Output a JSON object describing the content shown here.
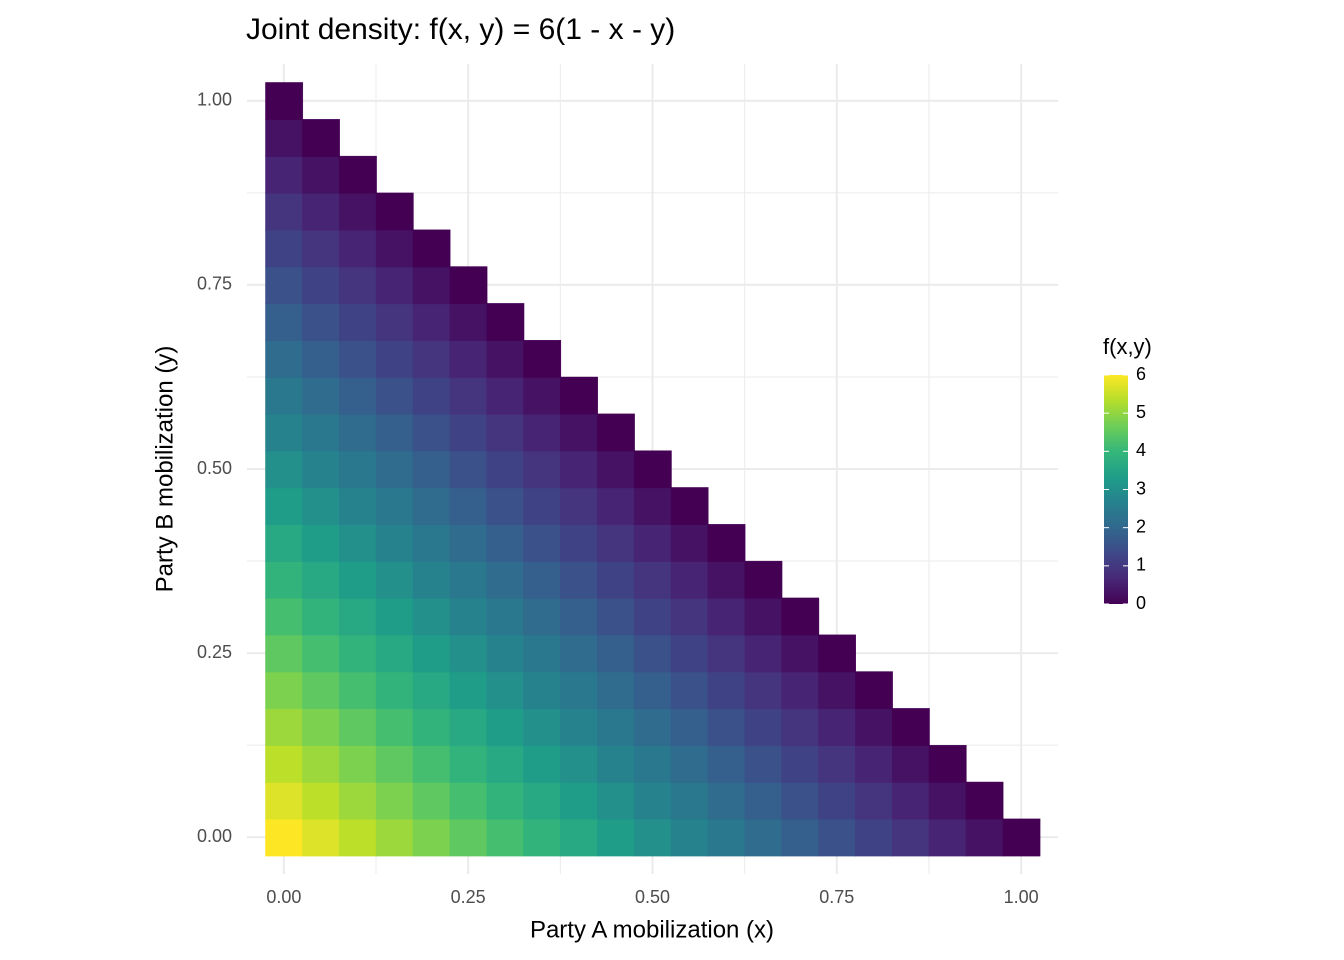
{
  "chart_data": {
    "type": "heatmap",
    "title": "Joint density: f(x, y) = 6(1 - x - y)",
    "xlabel": "Party A mobilization (x)",
    "ylabel": "Party B mobilization (y)",
    "legend_title": "f(x,y)",
    "x": [
      0,
      0.05,
      0.1,
      0.15,
      0.2,
      0.25,
      0.3,
      0.35,
      0.4,
      0.45,
      0.5,
      0.55,
      0.6,
      0.65,
      0.7,
      0.75,
      0.8,
      0.85,
      0.9,
      0.95,
      1
    ],
    "y": [
      0,
      0.05,
      0.1,
      0.15,
      0.2,
      0.25,
      0.3,
      0.35,
      0.4,
      0.45,
      0.5,
      0.55,
      0.6,
      0.65,
      0.7,
      0.75,
      0.8,
      0.85,
      0.9,
      0.95,
      1
    ],
    "z": [
      [
        6,
        5.7,
        5.4,
        5.1,
        4.8,
        4.5,
        4.2,
        3.9,
        3.6,
        3.3,
        3,
        2.7,
        2.4,
        2.1,
        1.8,
        1.5,
        1.2,
        0.9,
        0.6,
        0.3,
        0
      ],
      [
        5.7,
        5.4,
        5.1,
        4.8,
        4.5,
        4.2,
        3.9,
        3.6,
        3.3,
        3,
        2.7,
        2.4,
        2.1,
        1.8,
        1.5,
        1.2,
        0.9,
        0.6,
        0.3,
        0,
        null
      ],
      [
        5.4,
        5.1,
        4.8,
        4.5,
        4.2,
        3.9,
        3.6,
        3.3,
        3,
        2.7,
        2.4,
        2.1,
        1.8,
        1.5,
        1.2,
        0.9,
        0.6,
        0.3,
        0,
        null,
        null
      ],
      [
        5.1,
        4.8,
        4.5,
        4.2,
        3.9,
        3.6,
        3.3,
        3,
        2.7,
        2.4,
        2.1,
        1.8,
        1.5,
        1.2,
        0.9,
        0.6,
        0.3,
        0,
        null,
        null,
        null
      ],
      [
        4.8,
        4.5,
        4.2,
        3.9,
        3.6,
        3.3,
        3,
        2.7,
        2.4,
        2.1,
        1.8,
        1.5,
        1.2,
        0.9,
        0.6,
        0.3,
        0,
        null,
        null,
        null,
        null
      ],
      [
        4.5,
        4.2,
        3.9,
        3.6,
        3.3,
        3,
        2.7,
        2.4,
        2.1,
        1.8,
        1.5,
        1.2,
        0.9,
        0.6,
        0.3,
        0,
        null,
        null,
        null,
        null,
        null
      ],
      [
        4.2,
        3.9,
        3.6,
        3.3,
        3,
        2.7,
        2.4,
        2.1,
        1.8,
        1.5,
        1.2,
        0.9,
        0.6,
        0.3,
        0,
        null,
        null,
        null,
        null,
        null,
        null
      ],
      [
        3.9,
        3.6,
        3.3,
        3,
        2.7,
        2.4,
        2.1,
        1.8,
        1.5,
        1.2,
        0.9,
        0.6,
        0.3,
        0,
        null,
        null,
        null,
        null,
        null,
        null,
        null
      ],
      [
        3.6,
        3.3,
        3,
        2.7,
        2.4,
        2.1,
        1.8,
        1.5,
        1.2,
        0.9,
        0.6,
        0.3,
        0,
        null,
        null,
        null,
        null,
        null,
        null,
        null,
        null
      ],
      [
        3.3,
        3,
        2.7,
        2.4,
        2.1,
        1.8,
        1.5,
        1.2,
        0.9,
        0.6,
        0.3,
        0,
        null,
        null,
        null,
        null,
        null,
        null,
        null,
        null,
        null
      ],
      [
        3,
        2.7,
        2.4,
        2.1,
        1.8,
        1.5,
        1.2,
        0.9,
        0.6,
        0.3,
        0,
        null,
        null,
        null,
        null,
        null,
        null,
        null,
        null,
        null,
        null
      ],
      [
        2.7,
        2.4,
        2.1,
        1.8,
        1.5,
        1.2,
        0.9,
        0.6,
        0.3,
        0,
        null,
        null,
        null,
        null,
        null,
        null,
        null,
        null,
        null,
        null,
        null
      ],
      [
        2.4,
        2.1,
        1.8,
        1.5,
        1.2,
        0.9,
        0.6,
        0.3,
        0,
        null,
        null,
        null,
        null,
        null,
        null,
        null,
        null,
        null,
        null,
        null,
        null
      ],
      [
        2.1,
        1.8,
        1.5,
        1.2,
        0.9,
        0.6,
        0.3,
        0,
        null,
        null,
        null,
        null,
        null,
        null,
        null,
        null,
        null,
        null,
        null,
        null,
        null
      ],
      [
        1.8,
        1.5,
        1.2,
        0.9,
        0.6,
        0.3,
        0,
        null,
        null,
        null,
        null,
        null,
        null,
        null,
        null,
        null,
        null,
        null,
        null,
        null,
        null
      ],
      [
        1.5,
        1.2,
        0.9,
        0.6,
        0.3,
        0,
        null,
        null,
        null,
        null,
        null,
        null,
        null,
        null,
        null,
        null,
        null,
        null,
        null,
        null,
        null
      ],
      [
        1.2,
        0.9,
        0.6,
        0.3,
        0,
        null,
        null,
        null,
        null,
        null,
        null,
        null,
        null,
        null,
        null,
        null,
        null,
        null,
        null,
        null,
        null
      ],
      [
        0.9,
        0.6,
        0.3,
        0,
        null,
        null,
        null,
        null,
        null,
        null,
        null,
        null,
        null,
        null,
        null,
        null,
        null,
        null,
        null,
        null,
        null
      ],
      [
        0.6,
        0.3,
        0,
        null,
        null,
        null,
        null,
        null,
        null,
        null,
        null,
        null,
        null,
        null,
        null,
        null,
        null,
        null,
        null,
        null,
        null
      ],
      [
        0.3,
        0,
        null,
        null,
        null,
        null,
        null,
        null,
        null,
        null,
        null,
        null,
        null,
        null,
        null,
        null,
        null,
        null,
        null,
        null,
        null
      ],
      [
        0,
        null,
        null,
        null,
        null,
        null,
        null,
        null,
        null,
        null,
        null,
        null,
        null,
        null,
        null,
        null,
        null,
        null,
        null,
        null,
        null
      ]
    ],
    "xlim": [
      -0.05,
      1.05
    ],
    "ylim": [
      -0.05,
      1.05
    ],
    "xticks": [
      {
        "value": 0,
        "label": "0.00"
      },
      {
        "value": 0.25,
        "label": "0.25"
      },
      {
        "value": 0.5,
        "label": "0.50"
      },
      {
        "value": 0.75,
        "label": "0.75"
      },
      {
        "value": 1,
        "label": "1.00"
      }
    ],
    "yticks": [
      {
        "value": 0,
        "label": "0.00"
      },
      {
        "value": 0.25,
        "label": "0.25"
      },
      {
        "value": 0.5,
        "label": "0.50"
      },
      {
        "value": 0.75,
        "label": "0.75"
      },
      {
        "value": 1,
        "label": "1.00"
      }
    ],
    "minor_ticks": [
      0.125,
      0.375,
      0.625,
      0.875
    ],
    "grid": true,
    "clim": [
      0,
      6
    ],
    "cticks": [
      0,
      1,
      2,
      3,
      4,
      5,
      6
    ],
    "colormap": [
      "#440154",
      "#482878",
      "#3e4989",
      "#31688e",
      "#26828e",
      "#1f9e89",
      "#35b779",
      "#6ece58",
      "#b5de2b",
      "#fde725"
    ]
  }
}
